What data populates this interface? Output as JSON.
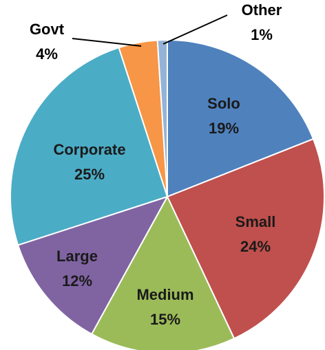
{
  "chart_data": {
    "type": "pie",
    "title": "",
    "legend": "none",
    "slices": [
      {
        "name": "Solo",
        "value": 19,
        "label": "19%",
        "color": "#4F81BD"
      },
      {
        "name": "Small",
        "value": 24,
        "label": "24%",
        "color": "#C0504D"
      },
      {
        "name": "Medium",
        "value": 15,
        "label": "15%",
        "color": "#9BBB59"
      },
      {
        "name": "Large",
        "value": 12,
        "label": "12%",
        "color": "#8064A2"
      },
      {
        "name": "Corporate",
        "value": 25,
        "label": "25%",
        "color": "#4BACC6"
      },
      {
        "name": "Govt",
        "value": 4,
        "label": "4%",
        "color": "#F79646"
      },
      {
        "name": "Other",
        "value": 1,
        "label": "1%",
        "color": "#95B3D7"
      }
    ]
  }
}
